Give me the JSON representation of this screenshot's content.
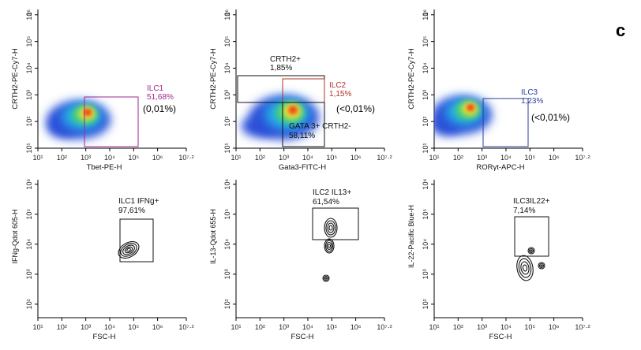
{
  "panel_letter": "c",
  "colors": {
    "ilc1_gate": "#a0278f",
    "ilc2_gate": "#b3302a",
    "ilc3_gate": "#2c3e9c",
    "gate_black": "#111111",
    "contour": "#111111"
  },
  "tick_labels": {
    "x": [
      "10¹",
      "10²",
      "10³",
      "10⁴",
      "10⁵",
      "10⁶",
      "10⁷·²"
    ],
    "y_top": [
      "10¹",
      "10²",
      "10³",
      "10⁴",
      "10⁵",
      "10⁶"
    ],
    "y_top_end": "1",
    "y_bottom": [
      "10²",
      "10³",
      "10⁴",
      "10⁵",
      "10⁶"
    ]
  },
  "panels": [
    {
      "id": "ilc1-density",
      "plot_type": "density",
      "xlabel": "Tbet-PE-H",
      "ylabel": "CRTH2-PE-Cy7-H",
      "gates": [
        {
          "label": "ILC1",
          "percent": "51,68%",
          "color_key": "ilc1_gate"
        }
      ],
      "annotations": [
        "(0,01%)"
      ]
    },
    {
      "id": "ilc2-density",
      "plot_type": "density",
      "xlabel": "Gata3-FITC-H",
      "ylabel": "CRTH2-PE-Cy7-H",
      "gates": [
        {
          "label": "CRTH2+",
          "percent": "1,85%",
          "color_key": "gate_black"
        },
        {
          "label": "ILC2",
          "percent": "1,15%",
          "color_key": "ilc2_gate"
        },
        {
          "label": "GATA 3+ CRTH2-",
          "percent": "58,11%",
          "color_key": "gate_black"
        }
      ],
      "annotations": [
        "(<0,01%)"
      ]
    },
    {
      "id": "ilc3-density",
      "plot_type": "density",
      "xlabel": "RORγt-APC-H",
      "ylabel": "CRTH2-PE-Cy7-H",
      "gates": [
        {
          "label": "ILC3",
          "percent": "1,23%",
          "color_key": "ilc3_gate"
        }
      ],
      "annotations": [
        "(<0,01%)"
      ]
    },
    {
      "id": "ifng-contour",
      "plot_type": "contour",
      "xlabel": "FSC-H",
      "ylabel": "IFNg-Qdot 605-H",
      "gates": [
        {
          "label": "ILC1 IFNg+",
          "percent": "97,61%",
          "color_key": "gate_black"
        }
      ],
      "annotations": []
    },
    {
      "id": "il13-contour",
      "plot_type": "contour",
      "xlabel": "FSC-H",
      "ylabel": "IL-13-Qdot 655-H",
      "gates": [
        {
          "label": "ILC2 IL13+",
          "percent": "61,54%",
          "color_key": "gate_black"
        }
      ],
      "annotations": []
    },
    {
      "id": "il22-contour",
      "plot_type": "contour",
      "xlabel": "FSC-H",
      "ylabel": "IL-22-Pacific Blue-H",
      "gates": [
        {
          "label": "ILC3IL22+",
          "percent": "7,14%",
          "color_key": "gate_black"
        }
      ],
      "annotations": []
    }
  ]
}
